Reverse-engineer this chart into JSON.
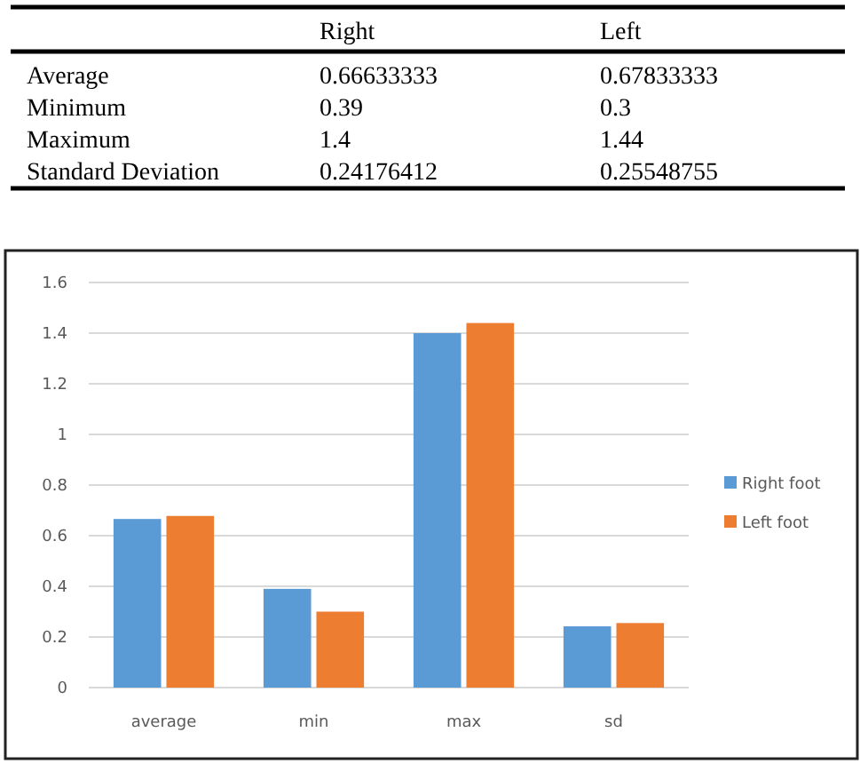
{
  "chart_data": [
    {
      "type": "other",
      "annotations": [
        "Right",
        "Left",
        "Average",
        "0.66633333",
        "0.67833333",
        "Minimum",
        "0.39",
        "0.3",
        "Maximum",
        "1.4",
        "1.44",
        "Standard Deviation",
        "0.24176412",
        "0.25548755"
      ]
    },
    {
      "type": "bar",
      "categories": [
        "average",
        "min",
        "max",
        "sd"
      ],
      "series": [
        {
          "name": "Right foot",
          "color": "#5b9bd5",
          "values": [
            0.666,
            0.39,
            1.4,
            0.242
          ]
        },
        {
          "name": "Left foot",
          "color": "#ed7d31",
          "values": [
            0.678,
            0.3,
            1.44,
            0.255
          ]
        }
      ],
      "ylim": [
        0,
        1.6
      ],
      "yticks": [
        0,
        0.2,
        0.4,
        0.6,
        0.8,
        1,
        1.2,
        1.4,
        1.6
      ],
      "grid": "y",
      "legend": "right"
    }
  ]
}
